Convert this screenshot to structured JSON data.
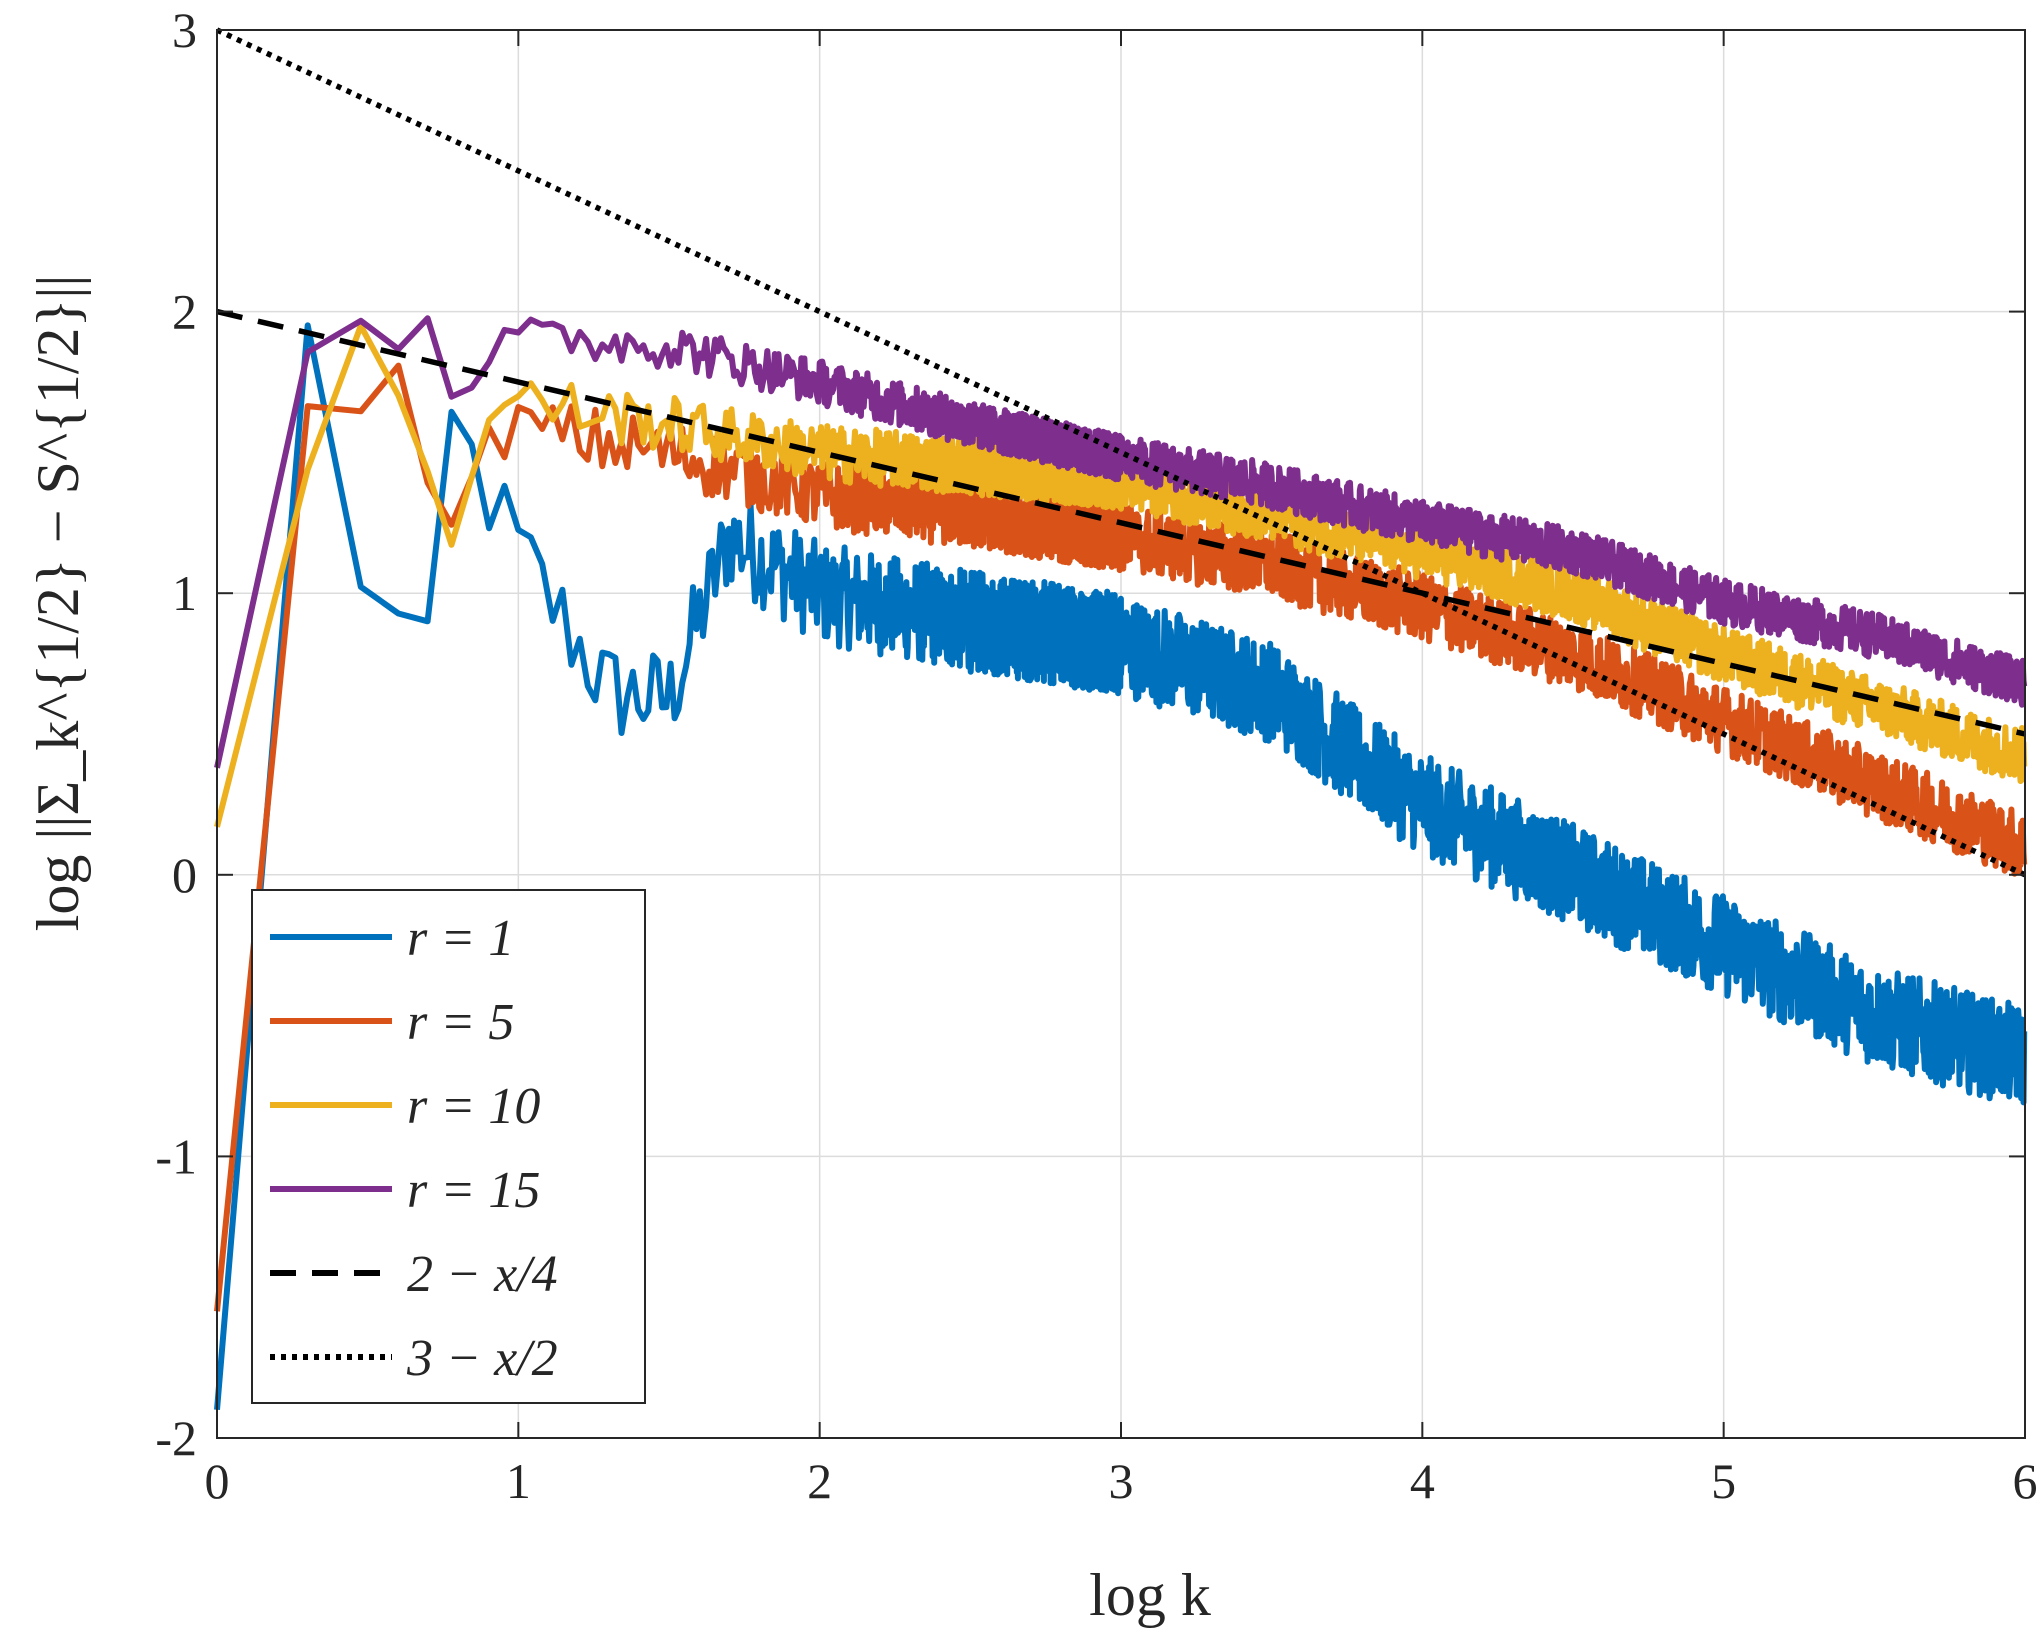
{
  "chart_data": {
    "type": "line",
    "xlabel": "log k",
    "ylabel": "log ||Σ_k^{1/2} − S^{1/2}||",
    "xlim": [
      0,
      6
    ],
    "ylim": [
      -2,
      3
    ],
    "xticks": [
      0,
      1,
      2,
      3,
      4,
      5,
      6
    ],
    "yticks": [
      -2,
      -1,
      0,
      1,
      2,
      3
    ],
    "xtick_labels": [
      "0",
      "1",
      "2",
      "3",
      "4",
      "5",
      "6"
    ],
    "ytick_labels": [
      "-2",
      "-1",
      "0",
      "1",
      "2",
      "3"
    ],
    "grid": true,
    "legend_position": "bottom-left",
    "series": [
      {
        "name": "r = 1",
        "color": "#0072BD",
        "style": "solid",
        "trend": [
          [
            0,
            -1.9
          ],
          [
            0.3,
            1.9
          ],
          [
            0.48,
            1.08
          ],
          [
            0.7,
            0.72
          ],
          [
            0.78,
            1.6
          ],
          [
            1.0,
            1.15
          ],
          [
            1.3,
            0.65
          ],
          [
            1.5,
            0.62
          ],
          [
            1.7,
            1.2
          ],
          [
            2.0,
            1.0
          ],
          [
            2.5,
            0.9
          ],
          [
            3.0,
            0.82
          ],
          [
            3.5,
            0.65
          ],
          [
            3.8,
            0.4
          ],
          [
            4.0,
            0.25
          ],
          [
            4.5,
            0.0
          ],
          [
            5.0,
            -0.25
          ],
          [
            5.5,
            -0.5
          ],
          [
            6.0,
            -0.65
          ]
        ],
        "noise": 0.18
      },
      {
        "name": "r = 5",
        "color": "#D95319",
        "style": "solid",
        "trend": [
          [
            0,
            -1.55
          ],
          [
            0.3,
            1.7
          ],
          [
            0.48,
            1.55
          ],
          [
            0.6,
            1.9
          ],
          [
            0.78,
            1.18
          ],
          [
            0.95,
            1.6
          ],
          [
            1.2,
            1.55
          ],
          [
            1.5,
            1.5
          ],
          [
            2.0,
            1.35
          ],
          [
            2.5,
            1.28
          ],
          [
            3.0,
            1.2
          ],
          [
            3.5,
            1.1
          ],
          [
            4.0,
            0.95
          ],
          [
            4.5,
            0.78
          ],
          [
            5.0,
            0.55
          ],
          [
            5.5,
            0.32
          ],
          [
            6.0,
            0.1
          ]
        ],
        "noise": 0.12
      },
      {
        "name": "r = 10",
        "color": "#EDB120",
        "style": "solid",
        "trend": [
          [
            0,
            0.17
          ],
          [
            0.3,
            1.5
          ],
          [
            0.48,
            2.0
          ],
          [
            0.6,
            1.68
          ],
          [
            0.78,
            1.25
          ],
          [
            0.95,
            1.7
          ],
          [
            1.2,
            1.65
          ],
          [
            1.5,
            1.6
          ],
          [
            2.0,
            1.5
          ],
          [
            2.5,
            1.45
          ],
          [
            3.0,
            1.4
          ],
          [
            3.5,
            1.28
          ],
          [
            4.0,
            1.15
          ],
          [
            4.5,
            1.0
          ],
          [
            5.0,
            0.78
          ],
          [
            5.5,
            0.6
          ],
          [
            6.0,
            0.42
          ]
        ],
        "noise": 0.1
      },
      {
        "name": "r = 15",
        "color": "#7E2F8E",
        "style": "solid",
        "trend": [
          [
            0,
            0.38
          ],
          [
            0.3,
            1.9
          ],
          [
            0.48,
            2.0
          ],
          [
            0.6,
            1.93
          ],
          [
            0.7,
            2.02
          ],
          [
            0.78,
            1.7
          ],
          [
            0.95,
            1.9
          ],
          [
            1.2,
            1.9
          ],
          [
            1.5,
            1.88
          ],
          [
            2.0,
            1.75
          ],
          [
            2.5,
            1.6
          ],
          [
            3.0,
            1.48
          ],
          [
            3.5,
            1.38
          ],
          [
            4.0,
            1.25
          ],
          [
            4.5,
            1.15
          ],
          [
            5.0,
            0.97
          ],
          [
            5.5,
            0.85
          ],
          [
            6.0,
            0.68
          ]
        ],
        "noise": 0.08
      },
      {
        "name": "2 − x/4",
        "color": "#000000",
        "style": "dashed",
        "line": [
          [
            0,
            2.0
          ],
          [
            6,
            0.5
          ]
        ]
      },
      {
        "name": "3 − x/2",
        "color": "#000000",
        "style": "dotted",
        "line": [
          [
            0,
            3.0
          ],
          [
            6,
            0.0
          ]
        ]
      }
    ]
  },
  "legend": {
    "items": [
      {
        "label": "r = 1",
        "color": "#0072BD",
        "style": "solid"
      },
      {
        "label": "r = 5",
        "color": "#D95319",
        "style": "solid"
      },
      {
        "label": "r = 10",
        "color": "#EDB120",
        "style": "solid"
      },
      {
        "label": "r = 15",
        "color": "#7E2F8E",
        "style": "solid"
      },
      {
        "label": "2 − x/4",
        "color": "#000000",
        "style": "dashed"
      },
      {
        "label": "3 − x/2",
        "color": "#000000",
        "style": "dotted"
      }
    ]
  }
}
